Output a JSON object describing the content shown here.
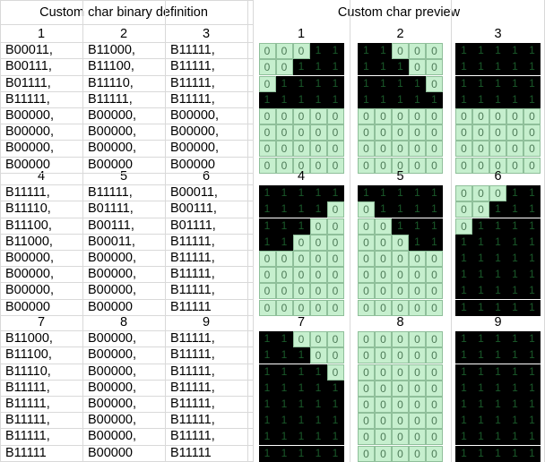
{
  "headers": {
    "left": "Custom char binary definition",
    "right": "Custom char preview"
  },
  "chars": [
    {
      "label": "1",
      "rows": [
        "B00011,",
        "B00111,",
        "B01111,",
        "B11111,",
        "B00000,",
        "B00000,",
        "B00000,",
        "B00000"
      ]
    },
    {
      "label": "2",
      "rows": [
        "B11000,",
        "B11100,",
        "B11110,",
        "B11111,",
        "B00000,",
        "B00000,",
        "B00000,",
        "B00000"
      ]
    },
    {
      "label": "3",
      "rows": [
        "B11111,",
        "B11111,",
        "B11111,",
        "B11111,",
        "B00000,",
        "B00000,",
        "B00000,",
        "B00000"
      ]
    },
    {
      "label": "4",
      "rows": [
        "B11111,",
        "B11110,",
        "B11100,",
        "B11000,",
        "B00000,",
        "B00000,",
        "B00000,",
        "B00000"
      ]
    },
    {
      "label": "5",
      "rows": [
        "B11111,",
        "B01111,",
        "B00111,",
        "B00011,",
        "B00000,",
        "B00000,",
        "B00000,",
        "B00000"
      ]
    },
    {
      "label": "6",
      "rows": [
        "B00011,",
        "B00111,",
        "B01111,",
        "B11111,",
        "B11111,",
        "B11111,",
        "B11111,",
        "B11111"
      ]
    },
    {
      "label": "7",
      "rows": [
        "B11000,",
        "B11100,",
        "B11110,",
        "B11111,",
        "B11111,",
        "B11111,",
        "B11111,",
        "B11111"
      ]
    },
    {
      "label": "8",
      "rows": [
        "B00000,",
        "B00000,",
        "B00000,",
        "B00000,",
        "B00000,",
        "B00000,",
        "B00000,",
        "B00000"
      ]
    },
    {
      "label": "9",
      "rows": [
        "B11111,",
        "B11111,",
        "B11111,",
        "B11111,",
        "B11111,",
        "B11111,",
        "B11111,",
        "B11111"
      ]
    }
  ],
  "colors": {
    "pixel_on": "#000000",
    "pixel_off": "#c6efce",
    "gridline": "#d9d9d9"
  }
}
